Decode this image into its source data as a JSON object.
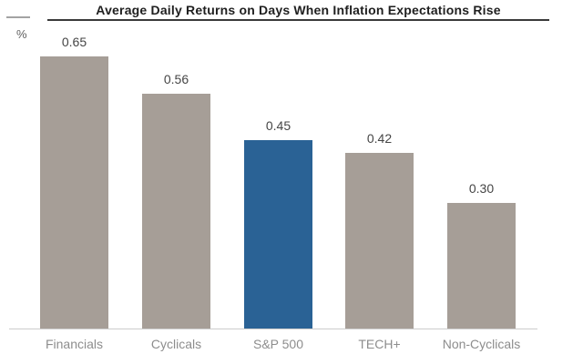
{
  "header": {
    "unit_label": "%"
  },
  "chart_data": {
    "type": "bar",
    "title": "Average Daily Returns on Days When Inflation Expectations Rise",
    "categories": [
      "Financials",
      "Cyclicals",
      "S&P 500",
      "TECH+",
      "Non-Cyclicals"
    ],
    "values": [
      0.65,
      0.56,
      0.45,
      0.42,
      0.3
    ],
    "value_labels": [
      "0.65",
      "0.56",
      "0.45",
      "0.42",
      "0.30"
    ],
    "xlabel": "",
    "ylabel": "%",
    "ylim": [
      0,
      0.72
    ],
    "grid": false,
    "legend": null,
    "axis_visible": false,
    "highlight_index": 2,
    "colors": {
      "default_bar": "#a69e97",
      "highlight_bar": "#2a6295",
      "title_text": "#1f1f1f",
      "title_rule": "#3a3a3a",
      "mini_rule": "#a3a3a3",
      "unit_label": "#5f5f5f",
      "value_label": "#454545",
      "category_label": "#8d8d8d",
      "baseline": "#cccccc",
      "background": "#ffffff"
    }
  }
}
